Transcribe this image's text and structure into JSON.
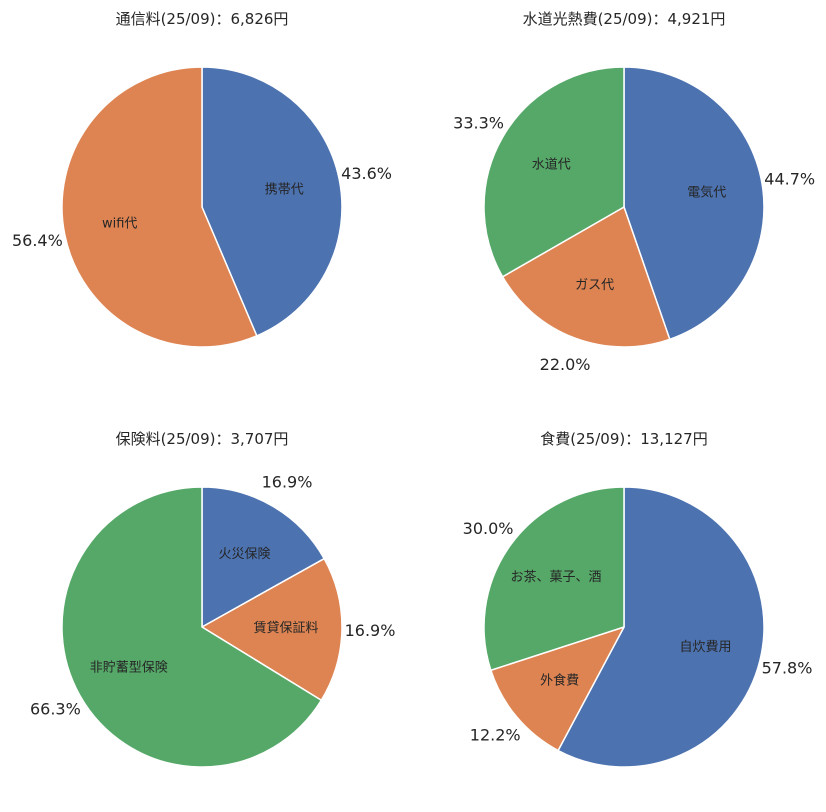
{
  "chart_data": [
    {
      "type": "pie",
      "title": "通信料(25/09)：6,826円",
      "labels": [
        "携帯代",
        "wifi代"
      ],
      "values": [
        43.6,
        56.4
      ],
      "pct_labels": [
        "43.6%",
        "56.4%"
      ],
      "colors": [
        "#4c72b0",
        "#dd8452"
      ]
    },
    {
      "type": "pie",
      "title": "水道光熱費(25/09)：4,921円",
      "labels": [
        "電気代",
        "ガス代",
        "水道代"
      ],
      "values": [
        44.7,
        22.0,
        33.3
      ],
      "pct_labels": [
        "44.7%",
        "22.0%",
        "33.3%"
      ],
      "colors": [
        "#4c72b0",
        "#dd8452",
        "#55a868"
      ]
    },
    {
      "type": "pie",
      "title": "保険料(25/09)：3,707円",
      "labels": [
        "火災保険",
        "賃貸保証料",
        "非貯蓄型保険"
      ],
      "values": [
        16.9,
        16.9,
        66.3
      ],
      "pct_labels": [
        "16.9%",
        "16.9%",
        "66.3%"
      ],
      "colors": [
        "#4c72b0",
        "#dd8452",
        "#55a868"
      ]
    },
    {
      "type": "pie",
      "title": "食費(25/09)：13,127円",
      "labels": [
        "自炊費用",
        "外食費",
        "お茶、菓子、酒"
      ],
      "values": [
        57.8,
        12.2,
        30.0
      ],
      "pct_labels": [
        "57.8%",
        "12.2%",
        "30.0%"
      ],
      "colors": [
        "#4c72b0",
        "#dd8452",
        "#55a868"
      ]
    }
  ]
}
